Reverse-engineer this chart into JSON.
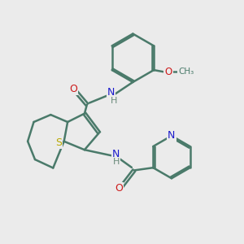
{
  "background_color": "#ebebeb",
  "bond_color": "#4a7a6a",
  "n_color": "#1a1acc",
  "o_color": "#cc1a1a",
  "s_color": "#b8a800",
  "h_color": "#6a8a7a",
  "line_width": 1.8,
  "figsize": [
    3.0,
    3.0
  ],
  "dpi": 100,
  "xlim": [
    0,
    10
  ],
  "ylim": [
    0,
    10
  ]
}
